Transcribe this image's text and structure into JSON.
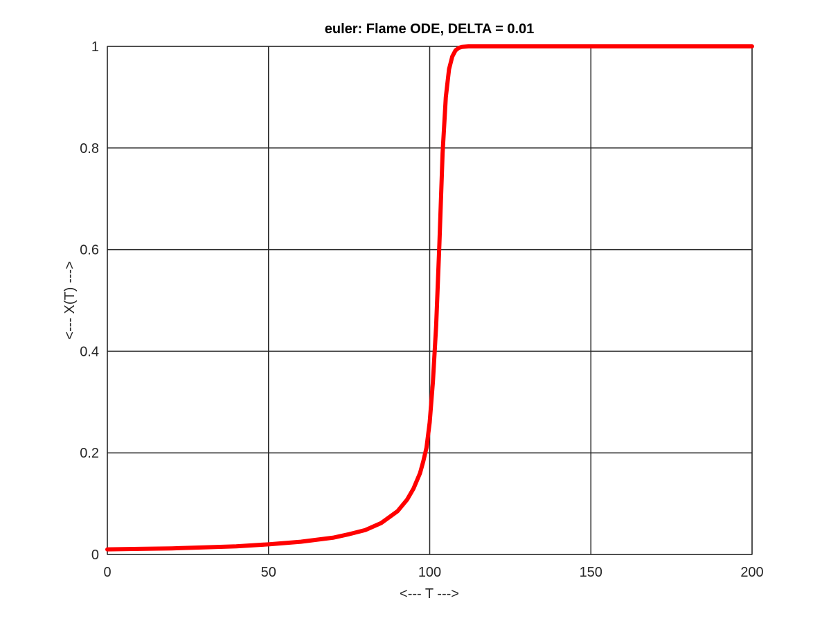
{
  "chart_data": {
    "type": "line",
    "title": "euler: Flame ODE, DELTA = 0.01",
    "xlabel": "<--- T --->",
    "ylabel": "<--- X(T) --->",
    "xlim": [
      0,
      200
    ],
    "ylim": [
      0,
      1
    ],
    "xticks": [
      0,
      50,
      100,
      150,
      200
    ],
    "xtick_labels": [
      "0",
      "50",
      "100",
      "150",
      "200"
    ],
    "yticks": [
      0,
      0.2,
      0.4,
      0.6,
      0.8,
      1
    ],
    "ytick_labels": [
      "0",
      "0.2",
      "0.4",
      "0.6",
      "0.8",
      "1"
    ],
    "grid": true,
    "series": [
      {
        "color": "#ff0000",
        "x": [
          0,
          10,
          20,
          30,
          40,
          50,
          60,
          70,
          75,
          80,
          85,
          90,
          93,
          95,
          97,
          98,
          99,
          100,
          101,
          102,
          103,
          104,
          105,
          106,
          107,
          108,
          109,
          110,
          112,
          115,
          120,
          130,
          150,
          175,
          200
        ],
        "y": [
          0.01,
          0.011,
          0.012,
          0.014,
          0.016,
          0.02,
          0.025,
          0.033,
          0.04,
          0.048,
          0.062,
          0.085,
          0.108,
          0.13,
          0.16,
          0.183,
          0.21,
          0.26,
          0.34,
          0.45,
          0.61,
          0.79,
          0.9,
          0.955,
          0.98,
          0.992,
          0.997,
          0.999,
          1.0,
          1.0,
          1.0,
          1.0,
          1.0,
          1.0,
          1.0
        ]
      }
    ]
  }
}
